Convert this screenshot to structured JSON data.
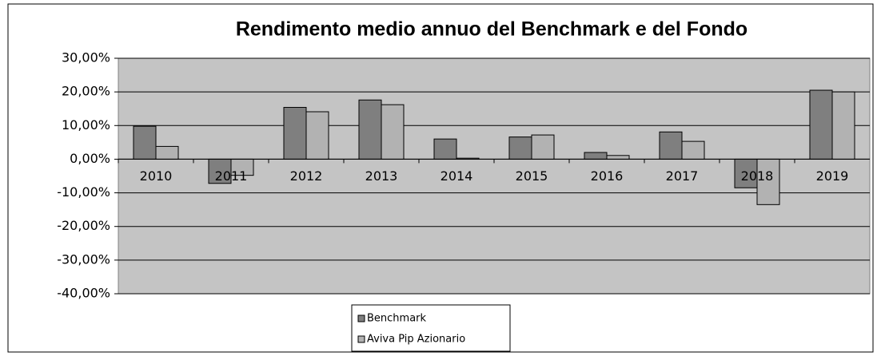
{
  "chart_data": {
    "type": "bar",
    "title": "Rendimento medio annuo del Benchmark e del Fondo",
    "categories": [
      "2010",
      "2011",
      "2012",
      "2013",
      "2014",
      "2015",
      "2016",
      "2017",
      "2018",
      "2019"
    ],
    "series": [
      {
        "name": "Benchmark",
        "color": "#7f7f7f",
        "values": [
          9.8,
          -7.2,
          15.4,
          17.6,
          6.0,
          6.6,
          2.0,
          8.1,
          -8.5,
          20.5
        ]
      },
      {
        "name": "Aviva Pip Azionario",
        "color": "#b2b2b2",
        "values": [
          3.8,
          -4.8,
          14.1,
          16.2,
          0.3,
          7.2,
          1.1,
          5.3,
          -13.5,
          20.0
        ]
      }
    ],
    "ylim": [
      -40,
      30
    ],
    "yticks": [
      {
        "value": -40,
        "label": "-40,00%"
      },
      {
        "value": -30,
        "label": "-30,00%"
      },
      {
        "value": -20,
        "label": "-20,00%"
      },
      {
        "value": -10,
        "label": "-10,00%"
      },
      {
        "value": 0,
        "label": "0,00%"
      },
      {
        "value": 10,
        "label": "10,00%"
      },
      {
        "value": 20,
        "label": "20,00%"
      },
      {
        "value": 30,
        "label": "30,00%"
      }
    ],
    "grid": true,
    "legend": "bottom"
  }
}
